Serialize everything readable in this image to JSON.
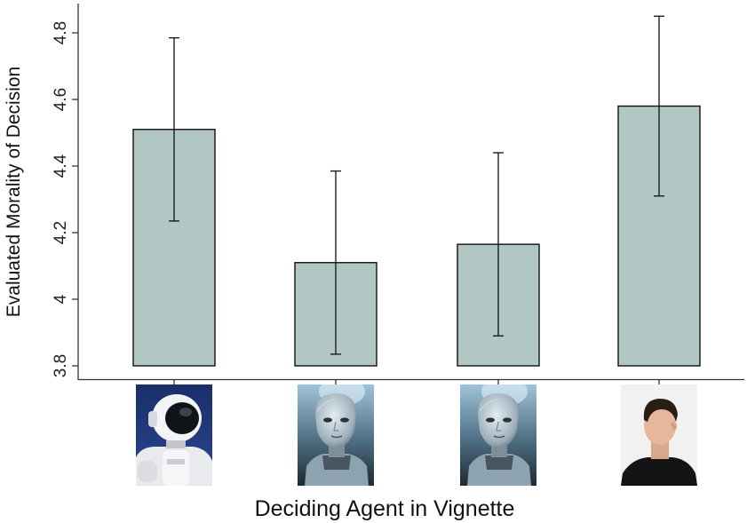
{
  "chart_data": {
    "type": "bar",
    "title": "",
    "xlabel": "Deciding Agent in Vignette",
    "ylabel": "Evaluated Morality of Decision",
    "ylim": [
      3.8,
      4.85
    ],
    "yticks": [
      3.8,
      4,
      4.2,
      4.4,
      4.6,
      4.8
    ],
    "ytick_labels": [
      "3.8",
      "4",
      "4.2",
      "4.4",
      "4.6",
      "4.8"
    ],
    "grid": false,
    "legend": "none",
    "categories": [
      {
        "picture": "mechanical-humanoid-robot-photo",
        "value": 4.51,
        "error_low": 4.235,
        "error_high": 4.785
      },
      {
        "picture": "humanlike-android-face-photo",
        "value": 4.11,
        "error_low": 3.835,
        "error_high": 4.385
      },
      {
        "picture": "humanlike-android-face-photo",
        "value": 4.165,
        "error_low": 3.89,
        "error_high": 4.44
      },
      {
        "picture": "human-man-photo",
        "value": 4.58,
        "error_low": 4.31,
        "error_high": 4.85
      }
    ],
    "bar_color": "#b1c7c3",
    "bar_edge_color": "#111111"
  }
}
